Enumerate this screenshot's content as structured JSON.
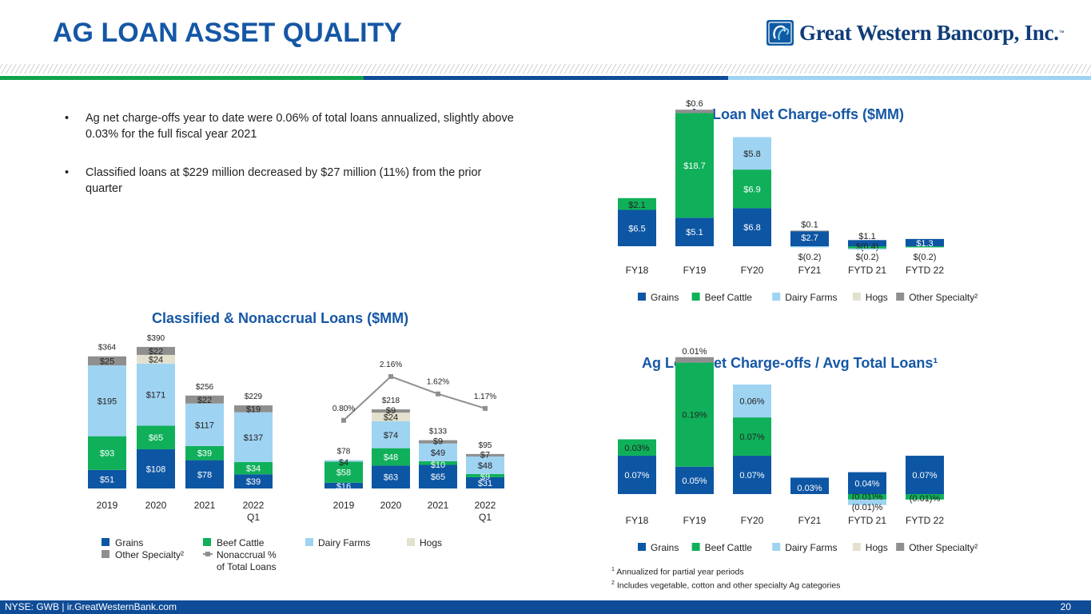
{
  "header": {
    "title": "AG LOAN ASSET QUALITY",
    "logo_text": "Great Western Bancorp, Inc.",
    "logo_tm": "™"
  },
  "bullets": [
    "Ag net charge-offs year to date were 0.06% of total loans annualized, slightly above 0.03% for the full fiscal year 2021",
    "Classified loans at $229 million decreased by $27 million (11%) from the prior quarter"
  ],
  "colors": {
    "Grains": "#0d56a3",
    "Beef Cattle": "#10b05a",
    "Dairy Farms": "#9fd3f2",
    "Hogs": "#e3e1ce",
    "Other Specialty": "#8f8f8f",
    "accent": "#1557a5",
    "line": "#8f8f8f"
  },
  "chart_data": [
    {
      "id": "nco",
      "type": "bar",
      "stacked": true,
      "title": "Ag Loan Net Charge-offs ($MM)",
      "categories": [
        "FY18",
        "FY19",
        "FY20",
        "FY21",
        "FYTD 21",
        "FYTD 22"
      ],
      "series": [
        {
          "name": "Grains",
          "values": [
            6.5,
            5.1,
            6.8,
            2.7,
            1.1,
            1.3
          ],
          "labels": [
            "$6.5",
            "$5.1",
            "$6.8",
            "$2.7",
            "$1.1",
            "$1.3"
          ]
        },
        {
          "name": "Beef Cattle",
          "values": [
            2.1,
            18.7,
            6.9,
            0,
            -0.4,
            -0.2
          ],
          "labels": [
            "$2.1",
            "$18.7",
            "$6.9",
            "",
            "$(0.4)",
            "$(0.2)"
          ]
        },
        {
          "name": "Dairy Farms",
          "values": [
            0,
            0,
            5.8,
            -0.2,
            -0.2,
            0
          ],
          "labels": [
            "",
            "",
            "$5.8",
            "$(0.2)",
            "$(0.2)",
            ""
          ]
        },
        {
          "name": "Hogs",
          "values": [
            0,
            0,
            0,
            0,
            0,
            0
          ],
          "labels": [
            "",
            "",
            "",
            "",
            "",
            ""
          ]
        },
        {
          "name": "Other Specialty",
          "values": [
            0,
            0.6,
            0,
            0.1,
            0,
            0
          ],
          "labels": [
            "",
            "$0.6",
            "",
            "$0.1",
            "",
            ""
          ]
        }
      ],
      "legend": [
        "Grains",
        "Beef Cattle",
        "Dairy Farms",
        "Hogs",
        "Other Specialty²"
      ]
    },
    {
      "id": "ratio",
      "type": "bar",
      "stacked": true,
      "title": "Ag Loan Net Charge-offs / Avg Total Loans¹",
      "categories": [
        "FY18",
        "FY19",
        "FY20",
        "FY21",
        "FYTD 21",
        "FYTD 22"
      ],
      "series": [
        {
          "name": "Grains",
          "values": [
            0.07,
            0.05,
            0.07,
            0.03,
            0.04,
            0.07
          ],
          "labels": [
            "0.07%",
            "0.05%",
            "0.07%",
            "0.03%",
            "0.04%",
            "0.07%"
          ]
        },
        {
          "name": "Beef Cattle",
          "values": [
            0.03,
            0.19,
            0.07,
            0,
            -0.01,
            -0.01
          ],
          "labels": [
            "0.03%",
            "0.19%",
            "0.07%",
            "",
            "(0.01)%",
            "(0.01)%"
          ]
        },
        {
          "name": "Dairy Farms",
          "values": [
            0,
            0,
            0.06,
            0,
            -0.01,
            0
          ],
          "labels": [
            "",
            "",
            "0.06%",
            "",
            "(0.01)%",
            ""
          ]
        },
        {
          "name": "Hogs",
          "values": [
            0,
            0,
            0,
            0,
            0,
            0
          ],
          "labels": [
            "",
            "",
            "",
            "",
            "",
            ""
          ]
        },
        {
          "name": "Other Specialty",
          "values": [
            0,
            0.01,
            0,
            0,
            0,
            0
          ],
          "labels": [
            "",
            "0.01%",
            "",
            "",
            "",
            ""
          ]
        }
      ],
      "legend": [
        "Grains",
        "Beef Cattle",
        "Dairy Farms",
        "Hogs",
        "Other Specialty²"
      ]
    },
    {
      "id": "classified",
      "type": "bar",
      "stacked": true,
      "title": "Classified & Nonaccrual Loans ($MM)",
      "categories": [
        "2019",
        "2020",
        "2021",
        "2022"
      ],
      "category_sublabels": [
        "",
        "",
        "",
        "Q1"
      ],
      "totals": [
        "$364",
        "$390",
        "$256",
        "$229"
      ],
      "series": [
        {
          "name": "Grains",
          "values": [
            51,
            108,
            78,
            39
          ],
          "labels": [
            "$51",
            "$108",
            "$78",
            "$39"
          ]
        },
        {
          "name": "Beef Cattle",
          "values": [
            93,
            65,
            39,
            34
          ],
          "labels": [
            "$93",
            "$65",
            "$39",
            "$34"
          ]
        },
        {
          "name": "Dairy Farms",
          "values": [
            195,
            171,
            117,
            137
          ],
          "labels": [
            "$195",
            "$171",
            "$117",
            "$137"
          ]
        },
        {
          "name": "Hogs",
          "values": [
            0,
            24,
            0,
            0
          ],
          "labels": [
            "",
            "$24",
            "",
            ""
          ]
        },
        {
          "name": "Other Specialty",
          "values": [
            25,
            22,
            22,
            19
          ],
          "labels": [
            "$25",
            "$22",
            "$22",
            "$19"
          ]
        }
      ]
    },
    {
      "id": "nonaccrual",
      "type": "bar",
      "stacked": true,
      "title": "",
      "categories": [
        "2019",
        "2020",
        "2021",
        "2022"
      ],
      "category_sublabels": [
        "",
        "",
        "",
        "Q1"
      ],
      "totals": [
        "$78",
        "$218",
        "$133",
        "$95"
      ],
      "series": [
        {
          "name": "Grains",
          "values": [
            16,
            63,
            65,
            31
          ],
          "labels": [
            "$16",
            "$63",
            "$65",
            "$31"
          ]
        },
        {
          "name": "Beef Cattle",
          "values": [
            58,
            48,
            10,
            9
          ],
          "labels": [
            "$58",
            "$48",
            "$10",
            "$9"
          ]
        },
        {
          "name": "Dairy Farms",
          "values": [
            4,
            74,
            49,
            48
          ],
          "labels": [
            "$4",
            "$74",
            "$49",
            "$48"
          ]
        },
        {
          "name": "Hogs",
          "values": [
            0,
            24,
            0,
            0
          ],
          "labels": [
            "",
            "$24",
            "",
            ""
          ]
        },
        {
          "name": "Other Specialty",
          "values": [
            0,
            9,
            9,
            7
          ],
          "labels": [
            "",
            "$9",
            "$9",
            "$7"
          ]
        }
      ],
      "line": {
        "name": "Nonaccrual % of Total Loans",
        "values": [
          0.8,
          2.16,
          1.62,
          1.17
        ],
        "labels": [
          "0.80%",
          "2.16%",
          "1.62%",
          "1.17%"
        ]
      }
    }
  ],
  "legend_left": {
    "grains": "Grains",
    "beef": "Beef Cattle",
    "dairy": "Dairy Farms",
    "hogs": "Hogs",
    "other": "Other Specialty²",
    "nonaccrual_1": "Nonaccrual %",
    "nonaccrual_2": "of Total Loans"
  },
  "footnotes": {
    "n1_mark": "1",
    "n1": "Annualized for partial year periods",
    "n2_mark": "2",
    "n2": "Includes vegetable, cotton and other specialty Ag categories"
  },
  "footer": {
    "left": "NYSE: GWB | ir.GreatWesternBank.com",
    "page": "20"
  }
}
